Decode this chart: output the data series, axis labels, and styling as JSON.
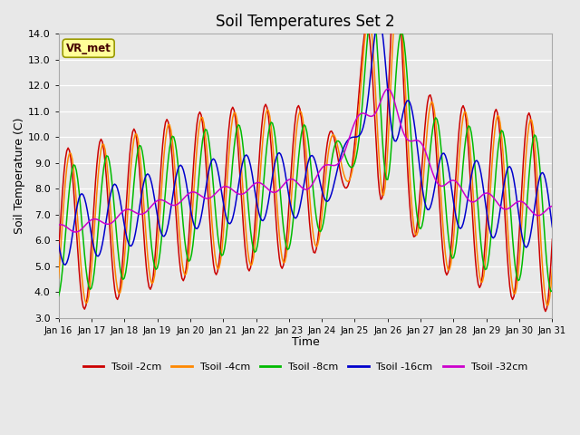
{
  "title": "Soil Temperatures Set 2",
  "xlabel": "Time",
  "ylabel": "Soil Temperature (C)",
  "ylim": [
    3.0,
    14.0
  ],
  "yticks": [
    3.0,
    4.0,
    5.0,
    6.0,
    7.0,
    8.0,
    9.0,
    10.0,
    11.0,
    12.0,
    13.0,
    14.0
  ],
  "xtick_labels": [
    "Jan 16",
    "Jan 17",
    "Jan 18",
    "Jan 19",
    "Jan 20",
    "Jan 21",
    "Jan 22",
    "Jan 23",
    "Jan 24",
    "Jan 25",
    "Jan 26",
    "Jan 27",
    "Jan 28",
    "Jan 29",
    "Jan 30",
    "Jan 31"
  ],
  "colors": {
    "Tsoil -2cm": "#cc0000",
    "Tsoil -4cm": "#ff8800",
    "Tsoil -8cm": "#00bb00",
    "Tsoil -16cm": "#0000cc",
    "Tsoil -32cm": "#cc00cc"
  },
  "legend_label": "VR_met",
  "fig_bg": "#e8e8e8",
  "plot_bg": "#e8e8e8",
  "grid_color": "#ffffff"
}
